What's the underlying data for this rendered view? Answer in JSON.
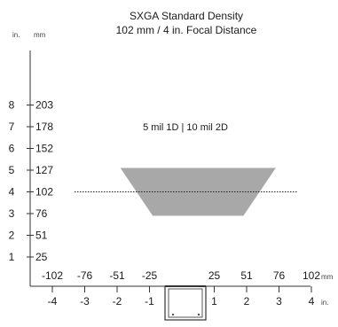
{
  "title": {
    "line1": "SXGA Standard Density",
    "line2": "102 mm / 4 in. Focal Distance"
  },
  "units": {
    "inch_left": "in.",
    "mm_left": "mm",
    "mm_bottom": "mm",
    "inch_bottom": "in."
  },
  "region_label": "5 mil 1D | 10 mil 2D",
  "colors": {
    "field_fill": "#a8a8a8",
    "axis": "#333333",
    "text": "#1a1a1a"
  },
  "chart_data": {
    "type": "area",
    "x_axis_mm": [
      "-102",
      "-76",
      "-51",
      "-25",
      "25",
      "51",
      "76",
      "102"
    ],
    "x_axis_in": [
      "-4",
      "-3",
      "-2",
      "-1",
      "1",
      "2",
      "3",
      "4"
    ],
    "y_axis_in": [
      "8",
      "7",
      "6",
      "5",
      "4",
      "3",
      "2",
      "1"
    ],
    "y_axis_mm": [
      "203",
      "178",
      "152",
      "127",
      "102",
      "76",
      "51",
      "25"
    ],
    "field_of_view_in": {
      "near": {
        "y": 2.9,
        "x_min": -0.9,
        "x_max": 1.9
      },
      "far": {
        "y": 5.1,
        "x_min": -1.9,
        "x_max": 2.9
      }
    },
    "focal_distance_in": 4,
    "xlim_in": [
      -5,
      4.5
    ],
    "ylim_in": [
      0,
      8.3
    ]
  }
}
